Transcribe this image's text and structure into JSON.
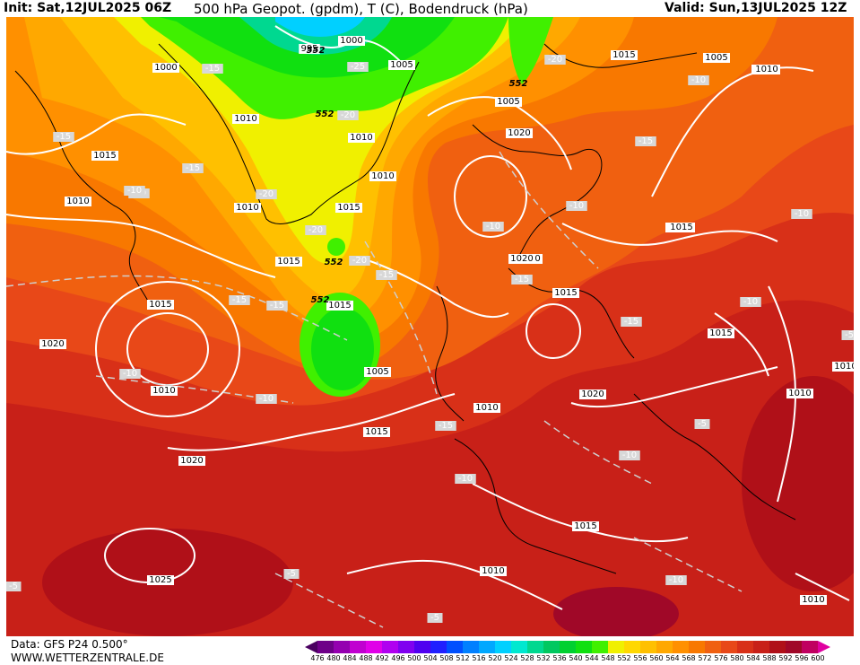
{
  "header": {
    "init": "Init: Sat,12JUL2025 06Z",
    "title": "500 hPa Geopot. (gpdm), T (C), Bodendruck (hPa)",
    "valid": "Valid: Sun,13JUL2025 12Z"
  },
  "footer": {
    "data_source": "Data: GFS P24 0.500°",
    "website": "WWW.WETTERZENTRALE.DE"
  },
  "colorbar": {
    "ticks": [
      "476",
      "480",
      "484",
      "488",
      "492",
      "496",
      "500",
      "504",
      "508",
      "512",
      "516",
      "520",
      "524",
      "528",
      "532",
      "536",
      "540",
      "544",
      "548",
      "552",
      "556",
      "560",
      "564",
      "568",
      "572",
      "576",
      "580",
      "584",
      "588",
      "592",
      "596",
      "600"
    ],
    "colors": [
      "#4a0060",
      "#6e0088",
      "#9400b0",
      "#c000d0",
      "#e000e8",
      "#b000f0",
      "#8000f0",
      "#5000f0",
      "#2020ff",
      "#0050ff",
      "#0080ff",
      "#00a8ff",
      "#00d0ff",
      "#00e8d0",
      "#00d890",
      "#00c860",
      "#00d030",
      "#10e010",
      "#40f000",
      "#f0f000",
      "#ffd800",
      "#ffc000",
      "#ffa800",
      "#ff9000",
      "#f87800",
      "#f06010",
      "#e84818",
      "#d83018",
      "#c82018",
      "#b01018",
      "#a00828",
      "#c00060",
      "#e000a0"
    ]
  },
  "map": {
    "isobar_labels": [
      "1000",
      "1000",
      "995",
      "1005",
      "1015",
      "1005",
      "1010",
      "1010",
      "1010",
      "1005",
      "1010",
      "1010",
      "1015",
      "1020",
      "1015",
      "1010",
      "1015",
      "1015",
      "1020",
      "1015",
      "1010",
      "1015",
      "1005",
      "1010",
      "1010",
      "1015",
      "1020",
      "1015",
      "1015",
      "1010",
      "1010",
      "1015",
      "1010",
      "1025",
      "1020",
      "1010",
      "1015",
      "1010",
      "1020"
    ],
    "temp_labels": [
      "-15",
      "-25",
      "-20",
      "-20",
      "-10",
      "-15",
      "-10",
      "-20",
      "-20",
      "-20",
      "-15",
      "-15",
      "-15",
      "-10",
      "-10",
      "-15",
      "-10",
      "-15",
      "-10",
      "-15",
      "-10",
      "-5",
      "-10",
      "-5",
      "-5",
      "-5",
      "-10",
      "-10",
      "-15",
      "-10",
      "-15",
      "-10",
      "-5"
    ],
    "gpdm_labels": [
      "552",
      "552",
      "552",
      "552",
      "552"
    ],
    "color_low": "#00d030",
    "color_mid": "#f0f000",
    "color_high": "#b01018",
    "isobar_color": "#ffffff",
    "coastline_color": "#000000"
  }
}
